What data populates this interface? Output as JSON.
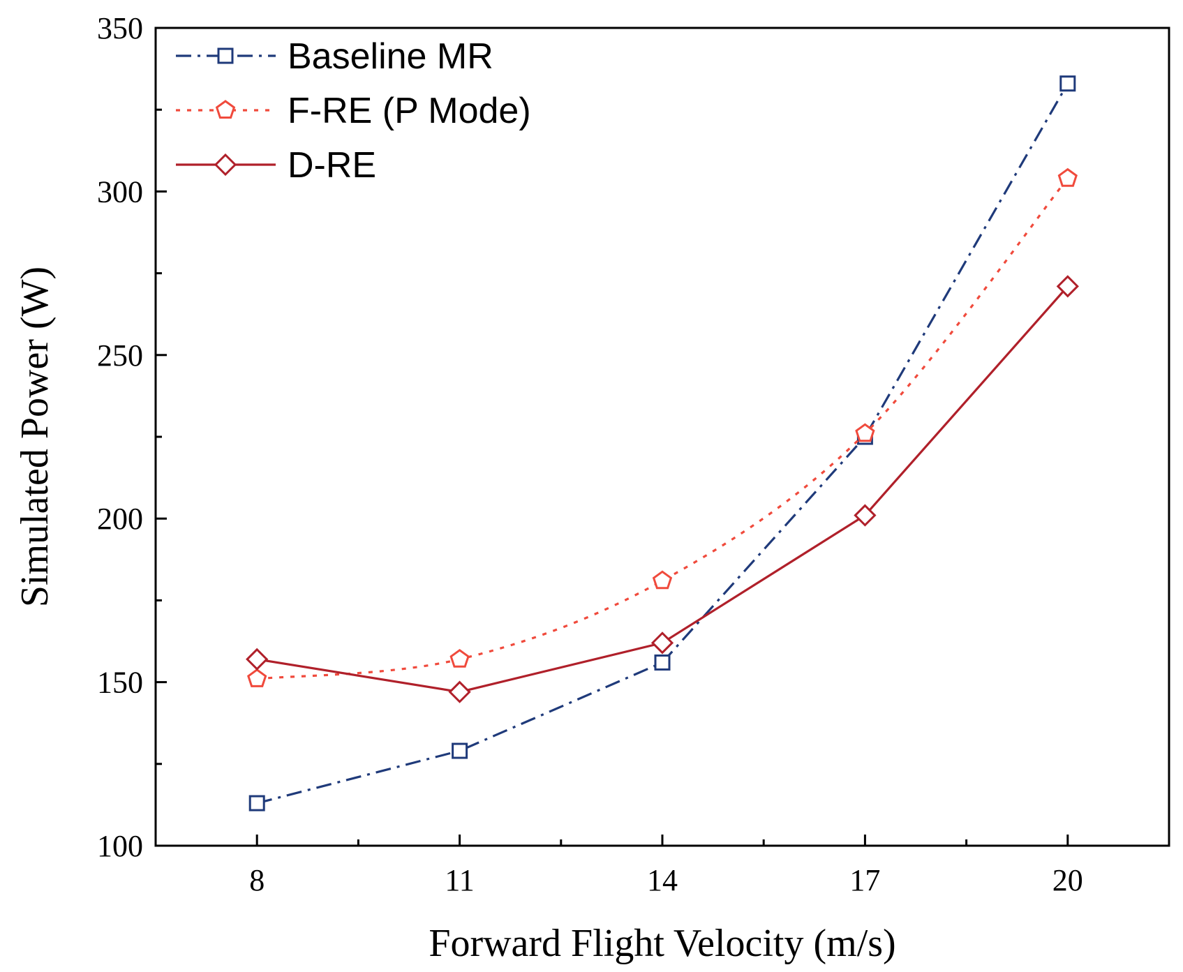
{
  "chart_data": {
    "type": "line",
    "title": "",
    "xlabel": "Forward Flight Velocity (m/s)",
    "ylabel": "Simulated Power (W)",
    "xlim": [
      6.5,
      21.5
    ],
    "ylim": [
      100,
      350
    ],
    "xticks": [
      8,
      11,
      14,
      17,
      20
    ],
    "xticks_minor": [
      9.5,
      12.5,
      15.5,
      18.5
    ],
    "yticks": [
      100,
      150,
      200,
      250,
      300,
      350
    ],
    "yticks_minor": [
      125,
      175,
      225,
      275,
      325
    ],
    "grid": false,
    "legend_position": "top-left",
    "x": [
      8,
      11,
      14,
      17,
      20
    ],
    "series": [
      {
        "name": "Baseline MR",
        "values": [
          113,
          129,
          156,
          225,
          333
        ],
        "color": "#1f3a7a",
        "line_style": "dash-dot",
        "marker": "square"
      },
      {
        "name": "F-RE (P Mode)",
        "values": [
          151,
          157,
          181,
          226,
          304
        ],
        "color": "#f04a3c",
        "line_style": "dotted",
        "marker": "pentagon"
      },
      {
        "name": "D-RE",
        "values": [
          157,
          147,
          162,
          201,
          271
        ],
        "color": "#b0202a",
        "line_style": "solid",
        "marker": "diamond"
      }
    ]
  }
}
